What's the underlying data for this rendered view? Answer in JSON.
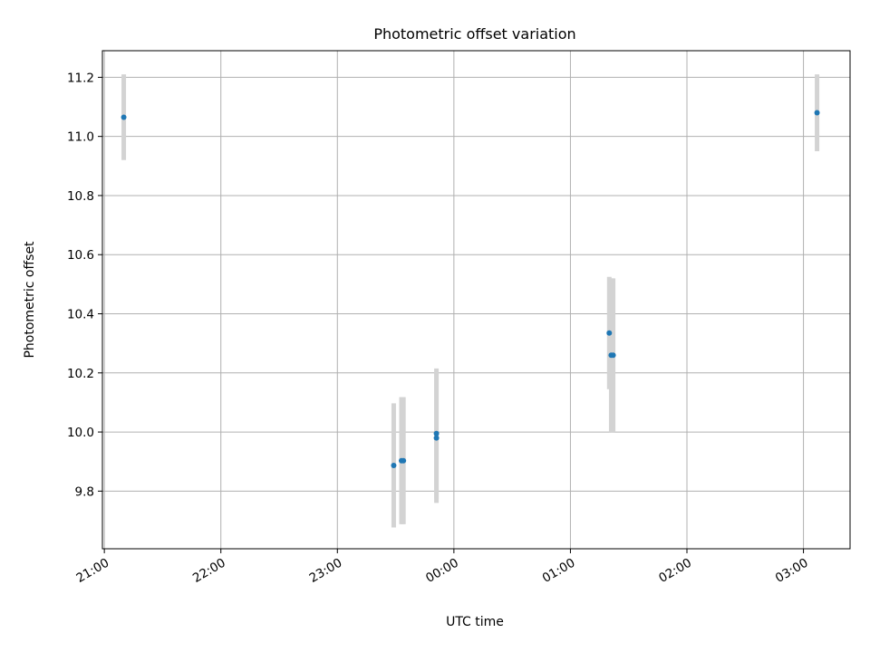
{
  "chart_data": {
    "type": "scatter",
    "title": "Photometric offset variation",
    "xlabel": "UTC time",
    "ylabel": "Photometric offset",
    "x_kind": "time",
    "xlim": [
      "20:59",
      "03:24"
    ],
    "ylim": [
      9.605,
      11.29
    ],
    "x_ticks": [
      "21:00",
      "22:00",
      "23:00",
      "00:00",
      "01:00",
      "02:00",
      "03:00"
    ],
    "y_ticks": [
      9.8,
      10.0,
      10.2,
      10.4,
      10.6,
      10.8,
      11.0,
      11.2
    ],
    "y_tick_labels": [
      "9.8",
      "10.0",
      "10.2",
      "10.4",
      "10.6",
      "10.8",
      "11.0",
      "11.2"
    ],
    "grid": true,
    "marker_color": "#1f77b4",
    "errorbar_color": "#d3d3d3",
    "points": [
      {
        "time": "21:10",
        "y": 11.065,
        "err": 0.145
      },
      {
        "time": "23:29",
        "y": 9.887,
        "err": 0.21
      },
      {
        "time": "23:33",
        "y": 9.903,
        "err": 0.215
      },
      {
        "time": "23:34",
        "y": 9.903,
        "err": 0.215
      },
      {
        "time": "23:51",
        "y": 9.98,
        "err": 0.22
      },
      {
        "time": "23:51",
        "y": 9.995,
        "err": 0.22
      },
      {
        "time": "01:20",
        "y": 10.335,
        "err": 0.19
      },
      {
        "time": "01:21",
        "y": 10.26,
        "err": 0.26
      },
      {
        "time": "01:22",
        "y": 10.26,
        "err": 0.26
      },
      {
        "time": "03:07",
        "y": 11.08,
        "err": 0.13
      }
    ]
  }
}
